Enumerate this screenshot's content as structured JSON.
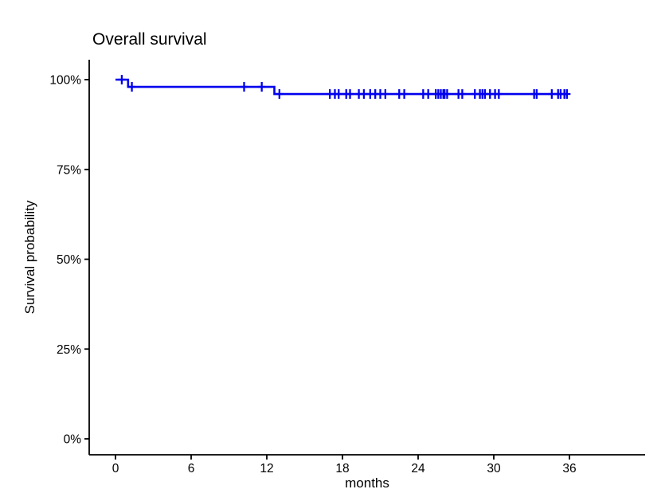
{
  "page": {
    "background_color": "#ffffff",
    "title": "Overall survival"
  },
  "chart_data": {
    "type": "line",
    "subtype": "kaplan_meier_step",
    "title": "Overall survival",
    "xlabel": "months",
    "ylabel": "Survival probability",
    "grid": false,
    "legend_position": "none",
    "plot_background": "#ffffff",
    "line_color": "#0000EE",
    "axis_color": "#000000",
    "xlim": [
      0,
      36
    ],
    "ylim_percent": [
      0,
      100
    ],
    "x_ticks": [
      {
        "value": 0,
        "label": "0"
      },
      {
        "value": 6,
        "label": "6"
      },
      {
        "value": 12,
        "label": "12"
      },
      {
        "value": 18,
        "label": "18"
      },
      {
        "value": 24,
        "label": "24"
      },
      {
        "value": 30,
        "label": "30"
      },
      {
        "value": 36,
        "label": "36"
      }
    ],
    "y_ticks": [
      {
        "value": 0,
        "label": "0%"
      },
      {
        "value": 25,
        "label": "25%"
      },
      {
        "value": 50,
        "label": "50%"
      },
      {
        "value": 75,
        "label": "75%"
      },
      {
        "value": 100,
        "label": "100%"
      }
    ],
    "series": [
      {
        "name": "Overall survival",
        "steps": [
          {
            "time": 0,
            "survival_pct": 100
          },
          {
            "time": 1.0,
            "survival_pct": 98
          },
          {
            "time": 12.6,
            "survival_pct": 96
          }
        ],
        "end_time": 35.9,
        "censor_marker": "plus",
        "censor_times": [
          0.5,
          1.3,
          10.2,
          11.6,
          13.0,
          17.0,
          17.4,
          17.7,
          18.3,
          18.6,
          19.3,
          19.7,
          20.2,
          20.6,
          21.0,
          21.4,
          22.5,
          22.9,
          24.4,
          24.8,
          25.4,
          25.6,
          25.8,
          26.0,
          26.1,
          26.3,
          27.2,
          27.5,
          28.5,
          28.9,
          29.1,
          29.3,
          29.7,
          30.1,
          30.4,
          33.2,
          33.4,
          34.6,
          35.1,
          35.3,
          35.6,
          35.8
        ]
      }
    ]
  }
}
